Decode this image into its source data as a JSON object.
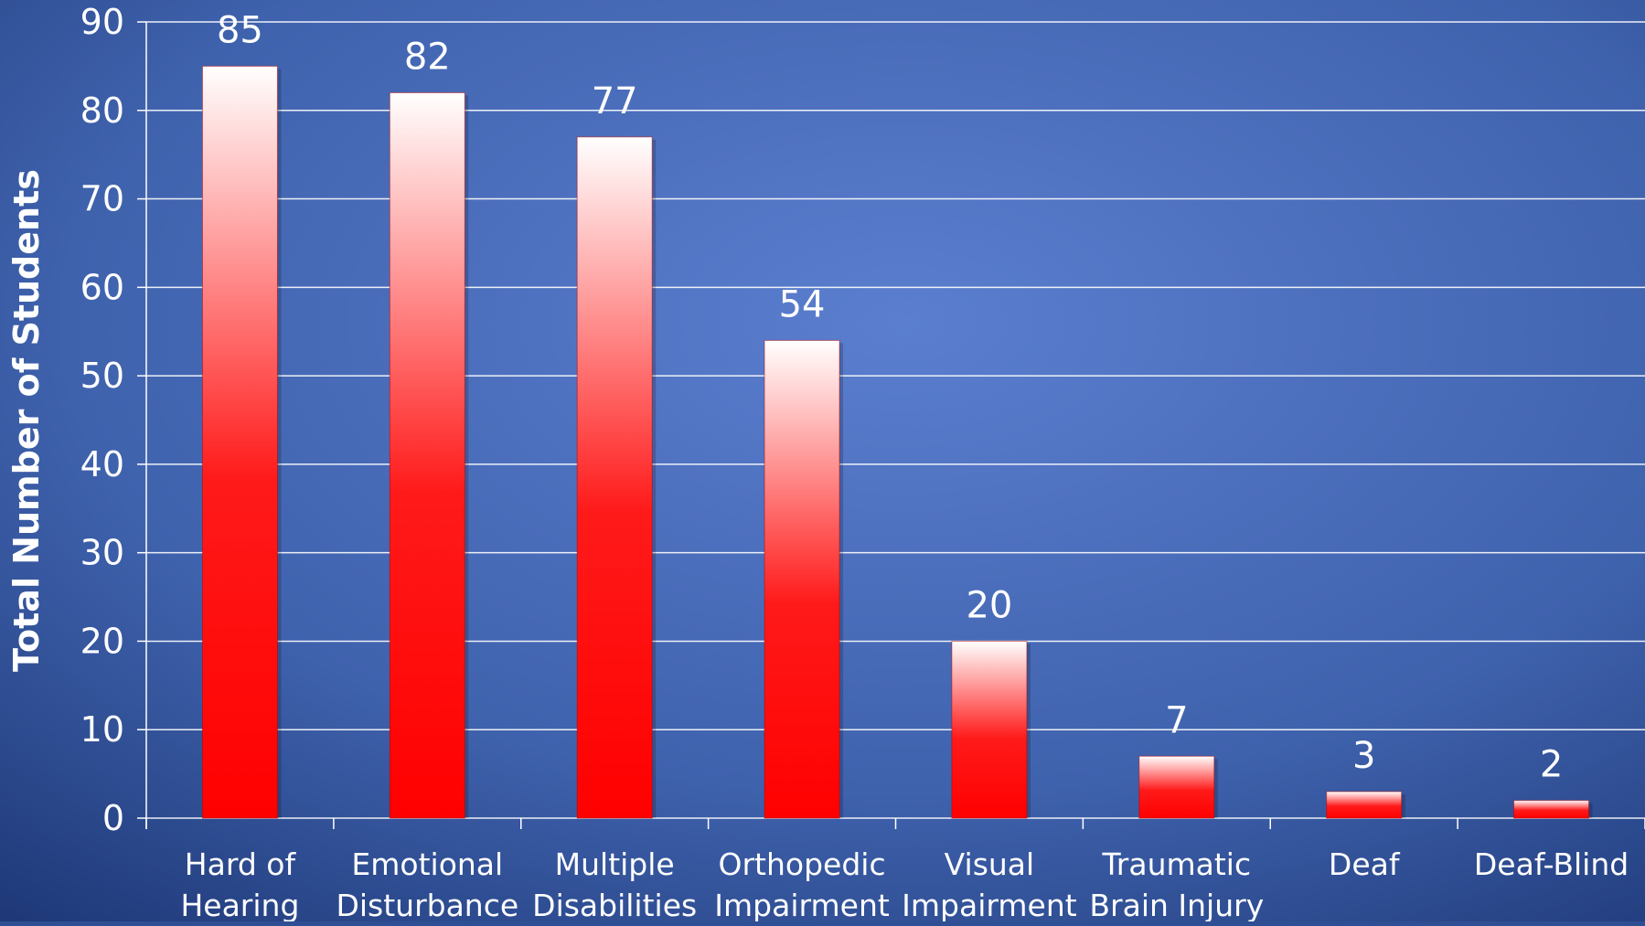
{
  "chart_data": {
    "type": "bar",
    "categories": [
      [
        "Hard of",
        "Hearing"
      ],
      [
        "Emotional",
        "Disturbance"
      ],
      [
        "Multiple",
        "Disabilities"
      ],
      [
        "Orthopedic",
        "Impairment"
      ],
      [
        "Visual",
        "Impairment"
      ],
      [
        "Traumatic",
        "Brain Injury"
      ],
      [
        "Deaf"
      ],
      [
        "Deaf-Blind"
      ]
    ],
    "values": [
      85,
      82,
      77,
      54,
      20,
      7,
      3,
      2
    ],
    "data_labels": [
      "85",
      "82",
      "77",
      "54",
      "20",
      "7",
      "3",
      "2"
    ],
    "title": "",
    "xlabel": "",
    "ylabel": "Total Number of Students",
    "ylim": [
      0,
      90
    ],
    "yticks": [
      0,
      10,
      20,
      30,
      40,
      50,
      60,
      70,
      80,
      90
    ],
    "grid": true,
    "legend": "none",
    "colors": {
      "background_center": "#5a7ccc",
      "background_edge": "#1f3a7a",
      "bar_top": "#ffffff",
      "bar_bottom": "#ff0000",
      "grid": "#ffffff",
      "text": "#ffffff"
    }
  }
}
